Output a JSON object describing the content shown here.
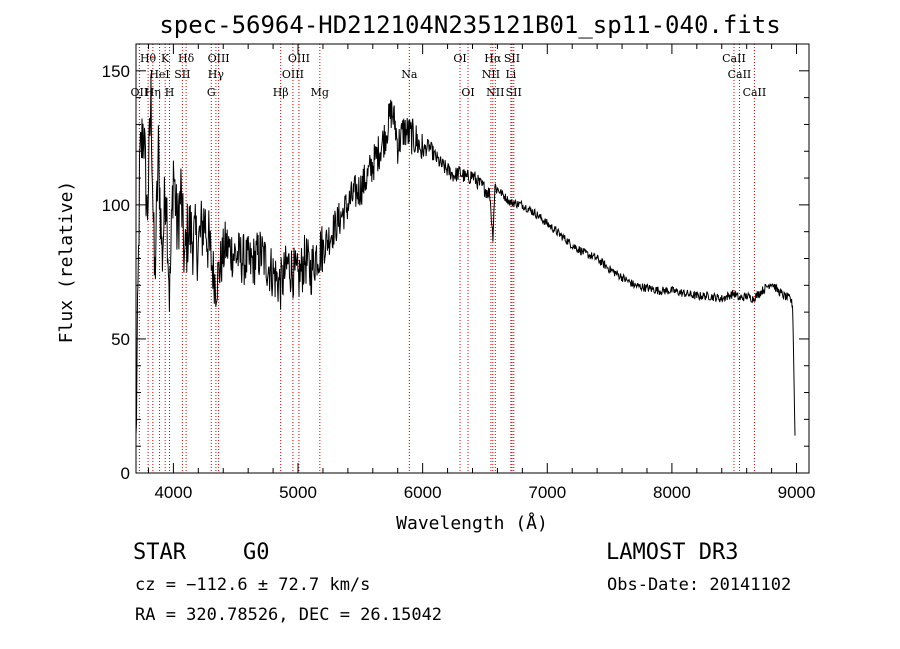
{
  "chart_data": {
    "type": "line",
    "title": "spec-56964-HD212104N235121B01_sp11-040.fits",
    "xlabel": "Wavelength (Å)",
    "ylabel": "Flux (relative)",
    "xlim": [
      3700,
      9100
    ],
    "ylim": [
      0,
      160
    ],
    "xticks": [
      4000,
      5000,
      6000,
      7000,
      8000,
      9000
    ],
    "yticks": [
      0,
      50,
      100,
      150
    ],
    "series": [
      {
        "name": "flux",
        "x": [
          3700,
          3730,
          3760,
          3790,
          3820,
          3850,
          3880,
          3910,
          3940,
          3970,
          4000,
          4030,
          4060,
          4090,
          4120,
          4150,
          4200,
          4250,
          4300,
          4340,
          4380,
          4420,
          4480,
          4550,
          4620,
          4700,
          4780,
          4860,
          4920,
          5000,
          5060,
          5100,
          5150,
          5200,
          5250,
          5300,
          5350,
          5400,
          5450,
          5500,
          5550,
          5600,
          5650,
          5700,
          5750,
          5780,
          5800,
          5850,
          5900,
          5950,
          6000,
          6050,
          6100,
          6150,
          6200,
          6250,
          6300,
          6350,
          6400,
          6450,
          6500,
          6540,
          6563,
          6580,
          6620,
          6700,
          6800,
          6900,
          7000,
          7100,
          7200,
          7300,
          7400,
          7500,
          7600,
          7700,
          7800,
          7900,
          8000,
          8100,
          8200,
          8300,
          8400,
          8500,
          8542,
          8600,
          8650,
          8700,
          8750,
          8800,
          8850,
          8900,
          8950,
          8970,
          8990
        ],
        "y": [
          10,
          115,
          130,
          95,
          140,
          70,
          120,
          80,
          110,
          65,
          115,
          90,
          105,
          78,
          92,
          88,
          85,
          95,
          80,
          70,
          78,
          85,
          82,
          80,
          78,
          82,
          76,
          70,
          78,
          72,
          80,
          75,
          82,
          84,
          88,
          92,
          96,
          100,
          104,
          106,
          110,
          115,
          120,
          126,
          135,
          130,
          122,
          128,
          126,
          124,
          120,
          122,
          118,
          115,
          113,
          111,
          112,
          110,
          111,
          108,
          106,
          104,
          88,
          107,
          105,
          101,
          100,
          97,
          93,
          89,
          85,
          82,
          80,
          76,
          73,
          70,
          69,
          68,
          68,
          67,
          66,
          66,
          65,
          67,
          65,
          66,
          65,
          67,
          69,
          71,
          68,
          66,
          65,
          62,
          8
        ]
      }
    ],
    "lines": [
      {
        "name": "OII",
        "x": 3727,
        "row": 3
      },
      {
        "name": "Hθ",
        "x": 3797,
        "row": 1
      },
      {
        "name": "Hη",
        "x": 3835,
        "row": 3
      },
      {
        "name": "HeI",
        "x": 3889,
        "row": 2
      },
      {
        "name": "K",
        "x": 3934,
        "row": 1
      },
      {
        "name": "SII",
        "x": 4072,
        "row": 2
      },
      {
        "name": "H",
        "x": 3969,
        "row": 3
      },
      {
        "name": "Hδ",
        "x": 4102,
        "row": 1
      },
      {
        "name": "G",
        "x": 4304,
        "row": 3
      },
      {
        "name": "OIII",
        "x": 4363,
        "row": 1
      },
      {
        "name": "Hγ",
        "x": 4341,
        "row": 2
      },
      {
        "name": "Hβ",
        "x": 4861,
        "row": 3
      },
      {
        "name": "OIII",
        "x": 5007,
        "row": 1
      },
      {
        "name": "OIII",
        "x": 4959,
        "row": 2
      },
      {
        "name": "Mg",
        "x": 5175,
        "row": 3
      },
      {
        "name": "Na",
        "x": 5893,
        "row": 2
      },
      {
        "name": "OI",
        "x": 6300,
        "row": 1
      },
      {
        "name": "OI",
        "x": 6364,
        "row": 3
      },
      {
        "name": "Hα",
        "x": 6563,
        "row": 1
      },
      {
        "name": "NII",
        "x": 6548,
        "row": 2
      },
      {
        "name": "NII",
        "x": 6583,
        "row": 3
      },
      {
        "name": "SII",
        "x": 6717,
        "row": 1
      },
      {
        "name": "Li",
        "x": 6708,
        "row": 2
      },
      {
        "name": "SII",
        "x": 6731,
        "row": 3
      },
      {
        "name": "CaII",
        "x": 8498,
        "row": 1
      },
      {
        "name": "CaII",
        "x": 8542,
        "row": 2
      },
      {
        "name": "CaII",
        "x": 8662,
        "row": 3
      }
    ],
    "grid": false,
    "legend": "none"
  },
  "info": {
    "class": "STAR",
    "subclass": "G0",
    "survey": "LAMOST DR3",
    "cz": "cz = −112.6 ± 72.7 km/s",
    "obs_date": "Obs-Date: 20141102",
    "coords": "RA = 320.78526, DEC =  26.15042"
  },
  "colors": {
    "axis": "#000000",
    "spectrum": "#000000",
    "lines": "#cc0000"
  }
}
